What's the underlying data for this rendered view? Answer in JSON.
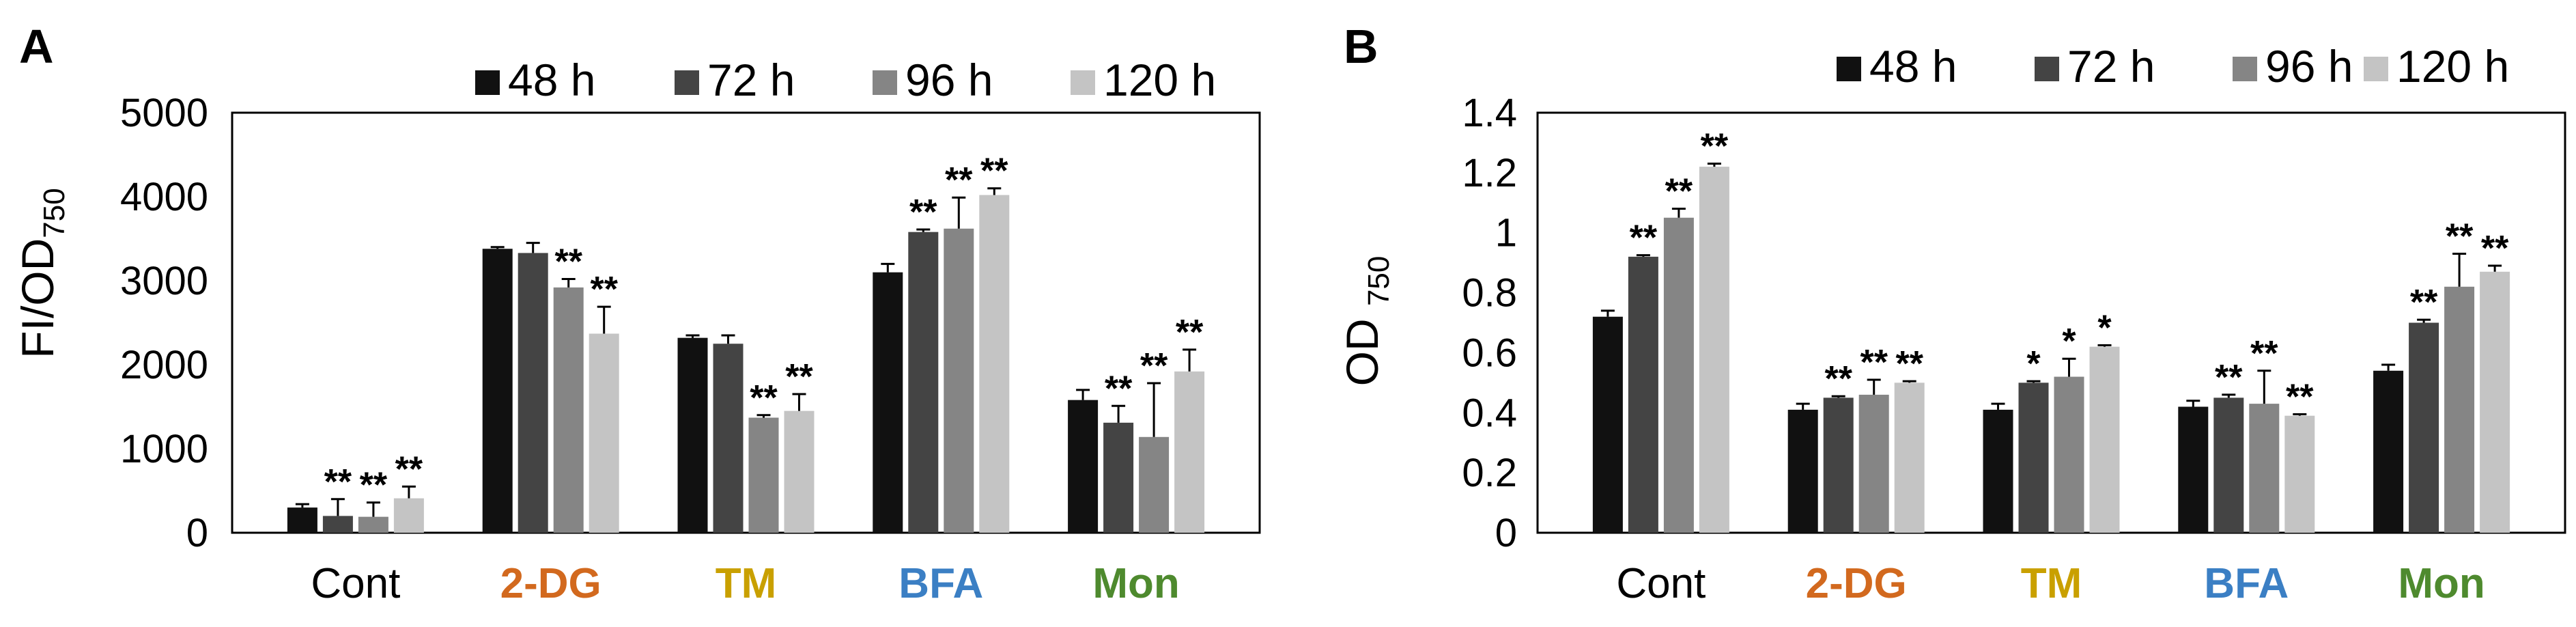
{
  "figure": {
    "category_colors": [
      "#000000",
      "#D2691E",
      "#C9A000",
      "#3B7FC4",
      "#4E8A2E"
    ]
  },
  "chart_data": [
    {
      "panel_label": "A",
      "type": "bar",
      "title": "",
      "xlabel": "",
      "ylabel_main": "FI/OD",
      "ylabel_sub": "750",
      "ylim": [
        0,
        5000
      ],
      "yticks": [
        0,
        1000,
        2000,
        3000,
        4000,
        5000
      ],
      "ytick_labels": [
        "0",
        "1000",
        "2000",
        "3000",
        "4000",
        "5000"
      ],
      "grid": false,
      "legend_position": "top",
      "categories": [
        "Cont",
        "2-DG",
        "TM",
        "BFA",
        "Mon"
      ],
      "series": [
        {
          "name": "48 h",
          "color": "#111111",
          "values": [
            300,
            3380,
            2320,
            3100,
            1580
          ],
          "errors": [
            40,
            20,
            30,
            100,
            120
          ],
          "significance": [
            "",
            "",
            "",
            "",
            ""
          ]
        },
        {
          "name": "72 h",
          "color": "#444444",
          "values": [
            200,
            3330,
            2250,
            3580,
            1310
          ],
          "errors": [
            200,
            120,
            100,
            30,
            200
          ],
          "significance": [
            "**",
            "",
            "",
            "**",
            "**"
          ]
        },
        {
          "name": "96 h",
          "color": "#858585",
          "values": [
            190,
            2920,
            1370,
            3620,
            1140
          ],
          "errors": [
            170,
            100,
            30,
            370,
            640
          ],
          "significance": [
            "**",
            "**",
            "**",
            "**",
            "**"
          ]
        },
        {
          "name": "120 h",
          "color": "#C4C4C4",
          "values": [
            410,
            2370,
            1450,
            4020,
            1920
          ],
          "errors": [
            140,
            320,
            200,
            80,
            260
          ],
          "significance": [
            "**",
            "**",
            "**",
            "**",
            "**"
          ]
        }
      ]
    },
    {
      "panel_label": "B",
      "type": "bar",
      "title": "",
      "xlabel": "",
      "ylabel_main": "OD ",
      "ylabel_sub": "750",
      "ylim": [
        0,
        1.4
      ],
      "yticks": [
        0,
        0.2,
        0.4,
        0.6,
        0.8,
        1.0,
        1.2,
        1.4
      ],
      "ytick_labels": [
        "0",
        "0.2",
        "0.4",
        "0.6",
        "0.8",
        "1",
        "1.2",
        "1.4"
      ],
      "grid": false,
      "legend_position": "top",
      "categories": [
        "Cont",
        "2-DG",
        "TM",
        "BFA",
        "Mon"
      ],
      "series": [
        {
          "name": "48 h",
          "color": "#111111",
          "values": [
            0.72,
            0.41,
            0.41,
            0.42,
            0.54
          ],
          "errors": [
            0.02,
            0.02,
            0.02,
            0.02,
            0.02
          ],
          "significance": [
            "",
            "",
            "",
            "",
            ""
          ]
        },
        {
          "name": "72 h",
          "color": "#444444",
          "values": [
            0.92,
            0.45,
            0.5,
            0.45,
            0.7
          ],
          "errors": [
            0.005,
            0.005,
            0.005,
            0.01,
            0.01
          ],
          "significance": [
            "**",
            "**",
            "*",
            "**",
            "**"
          ]
        },
        {
          "name": "96 h",
          "color": "#858585",
          "values": [
            1.05,
            0.46,
            0.52,
            0.43,
            0.82
          ],
          "errors": [
            0.03,
            0.05,
            0.06,
            0.11,
            0.11
          ],
          "significance": [
            "**",
            "**",
            "*",
            "**",
            "**"
          ]
        },
        {
          "name": "120 h",
          "color": "#C4C4C4",
          "values": [
            1.22,
            0.5,
            0.62,
            0.39,
            0.87
          ],
          "errors": [
            0.01,
            0.005,
            0.005,
            0.005,
            0.02
          ],
          "significance": [
            "**",
            "**",
            "*",
            "**",
            "**"
          ]
        }
      ]
    }
  ]
}
